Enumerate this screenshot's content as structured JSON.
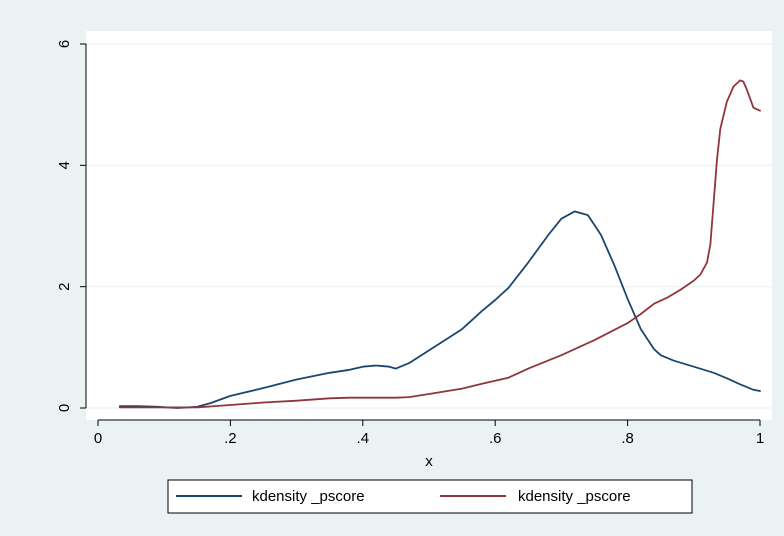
{
  "colors": {
    "outer_background": "#eaf2f3",
    "plot_background": "#ffffff",
    "grid": "#eaf2f3",
    "series_1": "#1a476f",
    "series_2": "#90353b"
  },
  "chart_data": {
    "type": "line",
    "title": "",
    "xlabel": "x",
    "ylabel": "",
    "xlim": [
      0,
      1
    ],
    "ylim": [
      0,
      6
    ],
    "grid": true,
    "legend_position": "bottom",
    "x_ticks": [
      {
        "value": 0,
        "label": "0"
      },
      {
        "value": 0.2,
        "label": ".2"
      },
      {
        "value": 0.4,
        "label": ".4"
      },
      {
        "value": 0.6,
        "label": ".6"
      },
      {
        "value": 0.8,
        "label": ".8"
      },
      {
        "value": 1,
        "label": "1"
      }
    ],
    "y_ticks": [
      {
        "value": 0,
        "label": "0"
      },
      {
        "value": 2,
        "label": "2"
      },
      {
        "value": 4,
        "label": "4"
      },
      {
        "value": 6,
        "label": "6"
      }
    ],
    "series": [
      {
        "name": "kdensity _pscore",
        "color": "#1a476f",
        "x": [
          0.033,
          0.06,
          0.09,
          0.12,
          0.15,
          0.17,
          0.2,
          0.25,
          0.3,
          0.35,
          0.38,
          0.4,
          0.42,
          0.44,
          0.45,
          0.47,
          0.5,
          0.55,
          0.58,
          0.6,
          0.62,
          0.65,
          0.68,
          0.7,
          0.72,
          0.74,
          0.76,
          0.78,
          0.8,
          0.82,
          0.84,
          0.85,
          0.87,
          0.9,
          0.93,
          0.95,
          0.97,
          0.99,
          1.0
        ],
        "y": [
          0.03,
          0.03,
          0.02,
          0.0,
          0.02,
          0.08,
          0.2,
          0.33,
          0.47,
          0.58,
          0.63,
          0.68,
          0.7,
          0.68,
          0.65,
          0.74,
          0.95,
          1.3,
          1.6,
          1.78,
          1.98,
          2.4,
          2.85,
          3.12,
          3.24,
          3.18,
          2.85,
          2.35,
          1.8,
          1.3,
          0.97,
          0.87,
          0.78,
          0.68,
          0.58,
          0.49,
          0.39,
          0.3,
          0.28
        ]
      },
      {
        "name": "kdensity _pscore",
        "color": "#90353b",
        "x": [
          0.033,
          0.1,
          0.15,
          0.2,
          0.25,
          0.3,
          0.35,
          0.38,
          0.4,
          0.45,
          0.47,
          0.5,
          0.55,
          0.58,
          0.6,
          0.62,
          0.65,
          0.7,
          0.75,
          0.8,
          0.82,
          0.84,
          0.86,
          0.88,
          0.9,
          0.91,
          0.92,
          0.925,
          0.93,
          0.935,
          0.94,
          0.95,
          0.96,
          0.97,
          0.975,
          0.98,
          0.985,
          0.99,
          1.0
        ],
        "y": [
          0.01,
          0.01,
          0.01,
          0.05,
          0.09,
          0.12,
          0.16,
          0.17,
          0.17,
          0.17,
          0.18,
          0.23,
          0.32,
          0.4,
          0.45,
          0.5,
          0.65,
          0.87,
          1.12,
          1.4,
          1.55,
          1.72,
          1.82,
          1.95,
          2.1,
          2.2,
          2.4,
          2.7,
          3.4,
          4.1,
          4.6,
          5.05,
          5.3,
          5.4,
          5.38,
          5.25,
          5.1,
          4.95,
          4.9
        ]
      }
    ]
  }
}
